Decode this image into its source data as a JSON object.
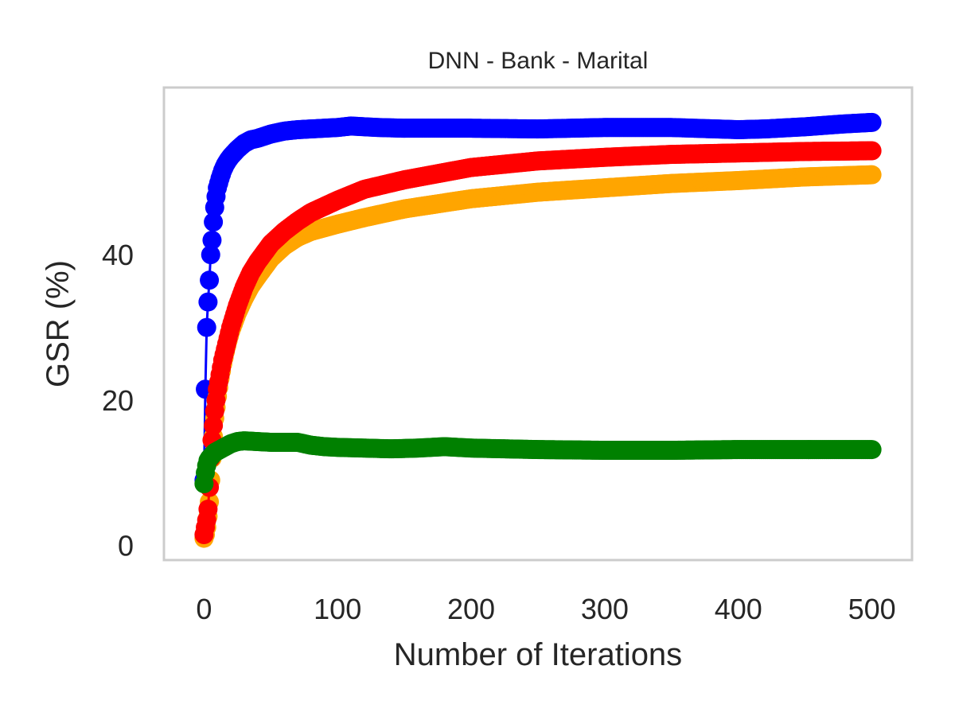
{
  "chart_data": {
    "type": "line",
    "title": "DNN - Bank - Marital",
    "xlabel": "Number of Iterations",
    "ylabel": "GSR (%)",
    "xlim": [
      -30,
      530
    ],
    "ylim": [
      -2,
      63
    ],
    "xticks": [
      0,
      100,
      200,
      300,
      400,
      500
    ],
    "yticks": [
      0,
      20,
      40
    ],
    "grid": false,
    "marker": "circle",
    "series": [
      {
        "color": "#0000ff",
        "x": [
          0,
          1,
          2,
          3,
          4,
          5,
          6,
          7,
          8,
          9,
          10,
          12,
          14,
          16,
          18,
          20,
          25,
          30,
          35,
          40,
          50,
          60,
          70,
          80,
          90,
          100,
          110,
          120,
          130,
          150,
          200,
          250,
          300,
          350,
          400,
          420,
          450,
          480,
          500
        ],
        "y": [
          9,
          21.5,
          30,
          33.5,
          36.5,
          40,
          42,
          44.5,
          46.5,
          48,
          49.2,
          50.5,
          51.6,
          52.4,
          53,
          53.5,
          54.5,
          55.3,
          55.8,
          56,
          56.6,
          57,
          57.2,
          57.3,
          57.4,
          57.5,
          57.7,
          57.6,
          57.5,
          57.4,
          57.4,
          57.3,
          57.5,
          57.5,
          57.2,
          57.3,
          57.6,
          58,
          58.2
        ]
      },
      {
        "color": "#ffa500",
        "x": [
          0,
          1,
          2,
          3,
          4,
          5,
          6,
          7,
          8,
          10,
          12,
          14,
          16,
          18,
          20,
          25,
          30,
          35,
          40,
          50,
          60,
          70,
          80,
          100,
          120,
          150,
          200,
          250,
          300,
          350,
          400,
          450,
          500
        ],
        "y": [
          1,
          1.5,
          2.5,
          4,
          6,
          9,
          12,
          15,
          17.5,
          20.5,
          23,
          25,
          26.7,
          28.2,
          29.5,
          32,
          34,
          35.7,
          37,
          39.5,
          41.2,
          42.4,
          43.2,
          44.2,
          45.1,
          46.3,
          47.7,
          48.6,
          49.2,
          49.8,
          50.2,
          50.7,
          51
        ]
      },
      {
        "color": "#ff0000",
        "x": [
          0,
          1,
          2,
          3,
          4,
          5,
          6,
          7,
          8,
          9,
          10,
          12,
          14,
          16,
          18,
          20,
          25,
          30,
          35,
          40,
          50,
          60,
          70,
          80,
          100,
          120,
          150,
          200,
          250,
          300,
          350,
          400,
          450,
          500
        ],
        "y": [
          1.5,
          2.5,
          3.5,
          5,
          8,
          12,
          14.5,
          16.5,
          18.5,
          20,
          21.5,
          23.5,
          25.5,
          27,
          28.5,
          30,
          33,
          35.5,
          37.5,
          39,
          41.5,
          43.2,
          44.6,
          45.8,
          47.5,
          49,
          50.3,
          52,
          52.9,
          53.4,
          53.8,
          54,
          54.2,
          54.3
        ]
      },
      {
        "color": "#008000",
        "x": [
          0,
          1,
          2,
          3,
          4,
          5,
          6,
          8,
          10,
          15,
          20,
          25,
          30,
          40,
          50,
          60,
          70,
          80,
          90,
          100,
          120,
          140,
          160,
          180,
          200,
          250,
          300,
          350,
          400,
          450,
          500
        ],
        "y": [
          8.5,
          10,
          11,
          11.7,
          12,
          12.2,
          12.4,
          12.8,
          13,
          13.5,
          14,
          14.3,
          14.4,
          14.3,
          14.2,
          14.2,
          14.2,
          13.8,
          13.6,
          13.5,
          13.4,
          13.3,
          13.4,
          13.6,
          13.4,
          13.2,
          13.1,
          13.1,
          13.2,
          13.2,
          13.2
        ]
      }
    ]
  }
}
